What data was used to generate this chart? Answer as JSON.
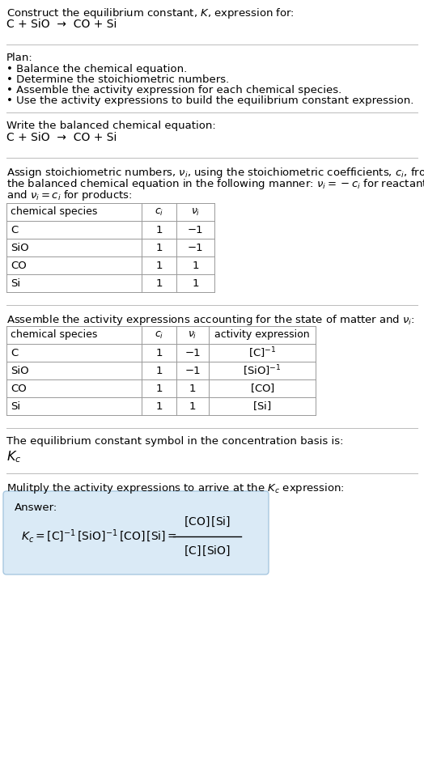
{
  "title_line1": "Construct the equilibrium constant, $K$, expression for:",
  "title_line2": "C + SiO  →  CO + Si",
  "plan_header": "Plan:",
  "plan_items": [
    "• Balance the chemical equation.",
    "• Determine the stoichiometric numbers.",
    "• Assemble the activity expression for each chemical species.",
    "• Use the activity expressions to build the equilibrium constant expression."
  ],
  "balanced_header": "Write the balanced chemical equation:",
  "balanced_eq": "C + SiO  →  CO + Si",
  "stoich_intro_lines": [
    "Assign stoichiometric numbers, $\\nu_i$, using the stoichiometric coefficients, $c_i$, from",
    "the balanced chemical equation in the following manner: $\\nu_i = -c_i$ for reactants",
    "and $\\nu_i = c_i$ for products:"
  ],
  "table1_headers": [
    "chemical species",
    "$c_i$",
    "$\\nu_i$"
  ],
  "table1_data": [
    [
      "C",
      "1",
      "−1"
    ],
    [
      "SiO",
      "1",
      "−1"
    ],
    [
      "CO",
      "1",
      "1"
    ],
    [
      "Si",
      "1",
      "1"
    ]
  ],
  "activity_intro": "Assemble the activity expressions accounting for the state of matter and $\\nu_i$:",
  "table2_headers": [
    "chemical species",
    "$c_i$",
    "$\\nu_i$",
    "activity expression"
  ],
  "table2_data": [
    [
      "C",
      "1",
      "−1",
      "$[\\mathrm{C}]^{-1}$"
    ],
    [
      "SiO",
      "1",
      "−1",
      "$[\\mathrm{SiO}]^{-1}$"
    ],
    [
      "CO",
      "1",
      "1",
      "$[\\mathrm{CO}]$"
    ],
    [
      "Si",
      "1",
      "1",
      "$[\\mathrm{Si}]$"
    ]
  ],
  "kc_text": "The equilibrium constant symbol in the concentration basis is:",
  "kc_symbol": "$K_c$",
  "multiply_text": "Mulitply the activity expressions to arrive at the $K_c$ expression:",
  "answer_label": "Answer:",
  "answer_box_color": "#daeaf6",
  "answer_box_edge": "#a8c8e0",
  "bg_color": "#ffffff",
  "text_color": "#000000",
  "table_line_color": "#999999",
  "divider_color": "#bbbbbb",
  "font_size": 9.5
}
